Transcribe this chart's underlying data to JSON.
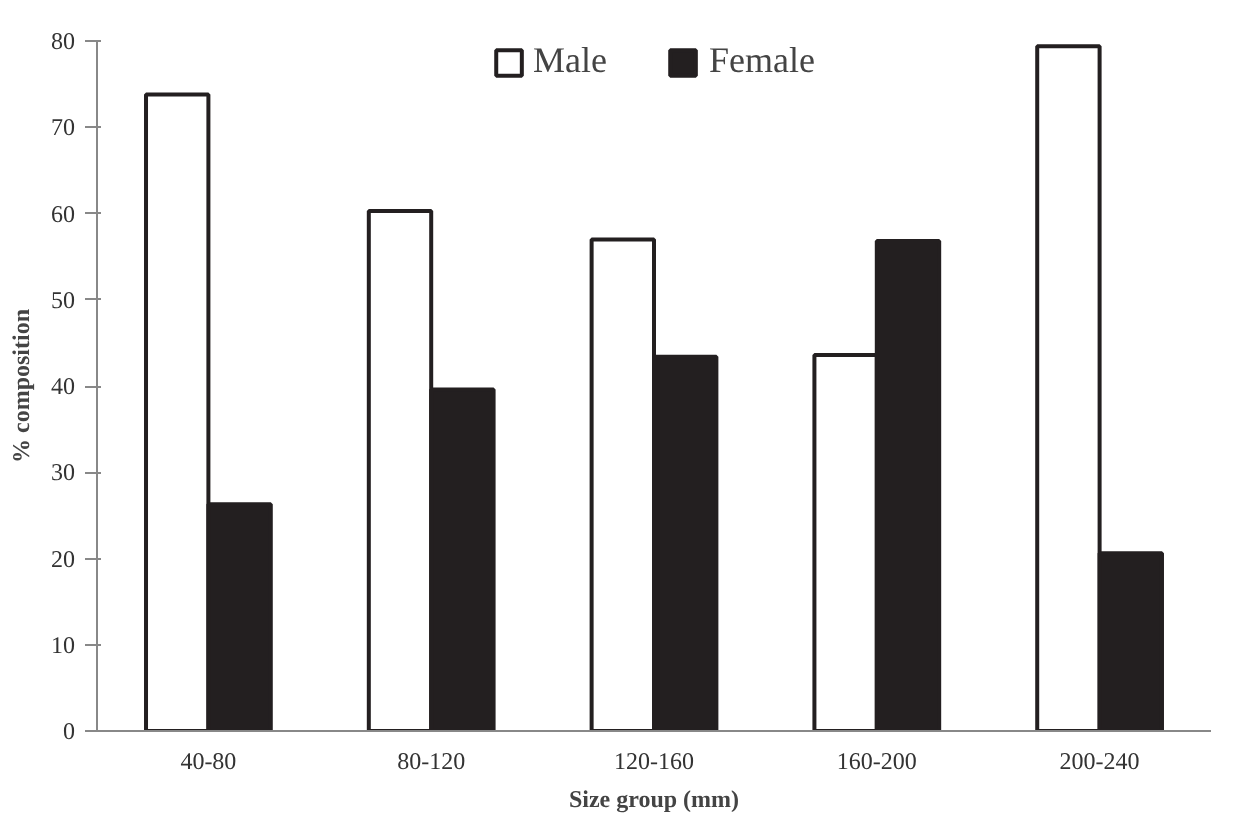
{
  "chart_data": {
    "type": "bar",
    "xlabel": "Size group (mm)",
    "ylabel": "% composition",
    "categories": [
      "40-80",
      "80-120",
      "120-160",
      "160-200",
      "200-240"
    ],
    "series": [
      {
        "name": "Male",
        "color": "#ffffff",
        "values": [
          73.8,
          60.3,
          57.0,
          43.6,
          79.4
        ]
      },
      {
        "name": "Female",
        "color": "#231f20",
        "values": [
          26.3,
          39.6,
          43.4,
          56.8,
          20.6
        ]
      }
    ],
    "ylim": [
      0,
      80
    ],
    "yticks": [
      0,
      10,
      20,
      30,
      40,
      50,
      60,
      70,
      80
    ],
    "grid": false,
    "legend": "top"
  }
}
